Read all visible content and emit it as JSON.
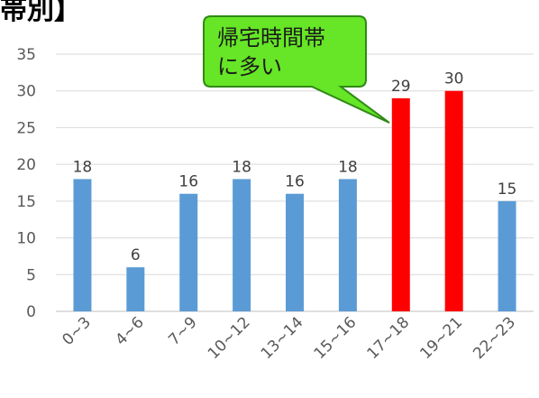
{
  "title": "帯別】",
  "callout": {
    "line1": "帰宅時間帯",
    "line2": "に多い",
    "fill": "#66e626",
    "stroke": "#2f8a16",
    "text_color": "#1a1a1a"
  },
  "colors": {
    "normal": "#5b9bd5",
    "highlight": "#ff0000",
    "grid": "#d9d9d9",
    "tick_text": "#595959",
    "label_text": "#404040",
    "axis": "#bfbfbf"
  },
  "chart_data": {
    "type": "bar",
    "categories": [
      "0~3",
      "4~6",
      "7~9",
      "10~12",
      "13~14",
      "15~16",
      "17~18",
      "19~21",
      "22~23"
    ],
    "values": [
      18,
      6,
      16,
      18,
      16,
      18,
      29,
      30,
      15
    ],
    "highlighted": [
      "17~18",
      "19~21"
    ],
    "ylim": [
      0,
      35
    ],
    "yticks": [
      0,
      5,
      10,
      15,
      20,
      25,
      30,
      35
    ],
    "grid": true,
    "data_labels": true,
    "legend": "none"
  }
}
